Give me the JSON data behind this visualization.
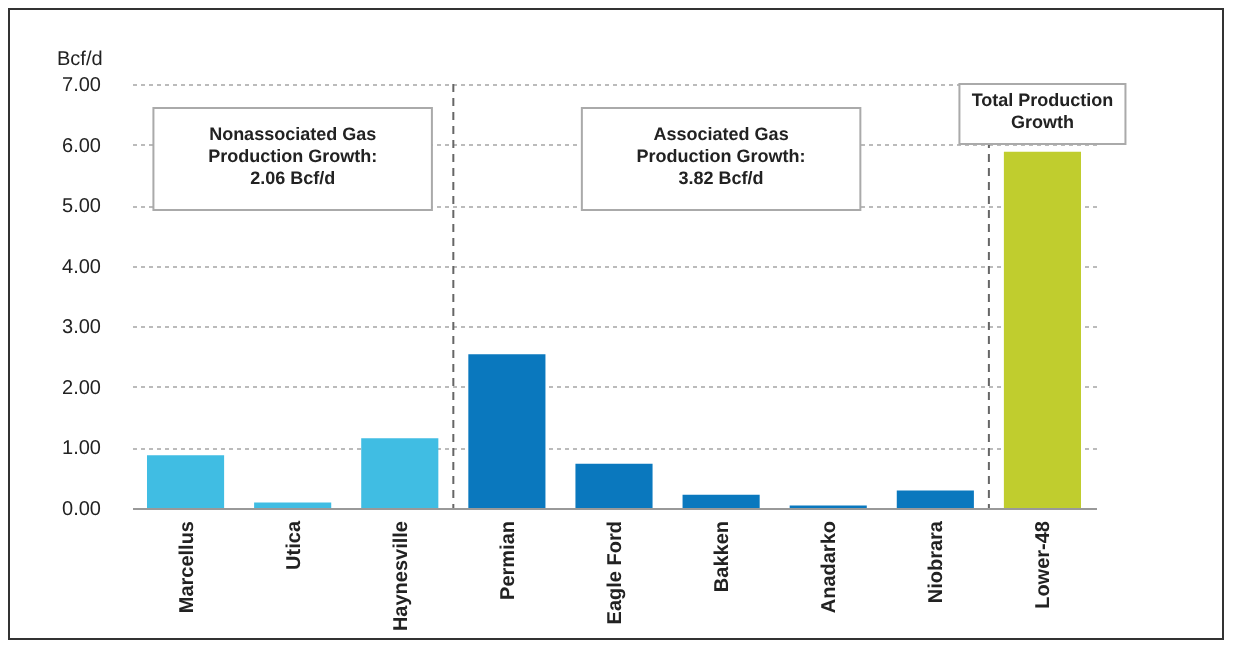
{
  "chart_data": {
    "type": "bar",
    "ylabel": "Bcf/d",
    "categories": [
      "Marcellus",
      "Utica",
      "Haynesville",
      "Permian",
      "Eagle Ford",
      "Bakken",
      "Anadarko",
      "Niobrara",
      "Lower-48"
    ],
    "values": [
      0.87,
      0.09,
      1.15,
      2.54,
      0.73,
      0.22,
      0.04,
      0.29,
      5.88
    ],
    "colors": [
      "#40bde3",
      "#40bde3",
      "#40bde3",
      "#0a78be",
      "#0a78be",
      "#0a78be",
      "#0a78be",
      "#0a78be",
      "#c0cd2e"
    ],
    "ylim": [
      0,
      7
    ],
    "yticks": [
      {
        "value": 0,
        "label": "0.00"
      },
      {
        "value": 1,
        "label": "1.00"
      },
      {
        "value": 2,
        "label": "2.00"
      },
      {
        "value": 3,
        "label": "3.00"
      },
      {
        "value": 4,
        "label": "4.00"
      },
      {
        "value": 5,
        "label": "5.00"
      },
      {
        "value": 6,
        "label": "6.00"
      },
      {
        "value": 7,
        "label": "7.00"
      }
    ],
    "grid": "y",
    "annotations": [
      "Nonassociated Gas\nProduction Growth:\n2.06 Bcf/d",
      "Associated Gas\nProduction Growth:\n3.82 Bcf/d",
      "Total Production\nGrowth"
    ]
  }
}
